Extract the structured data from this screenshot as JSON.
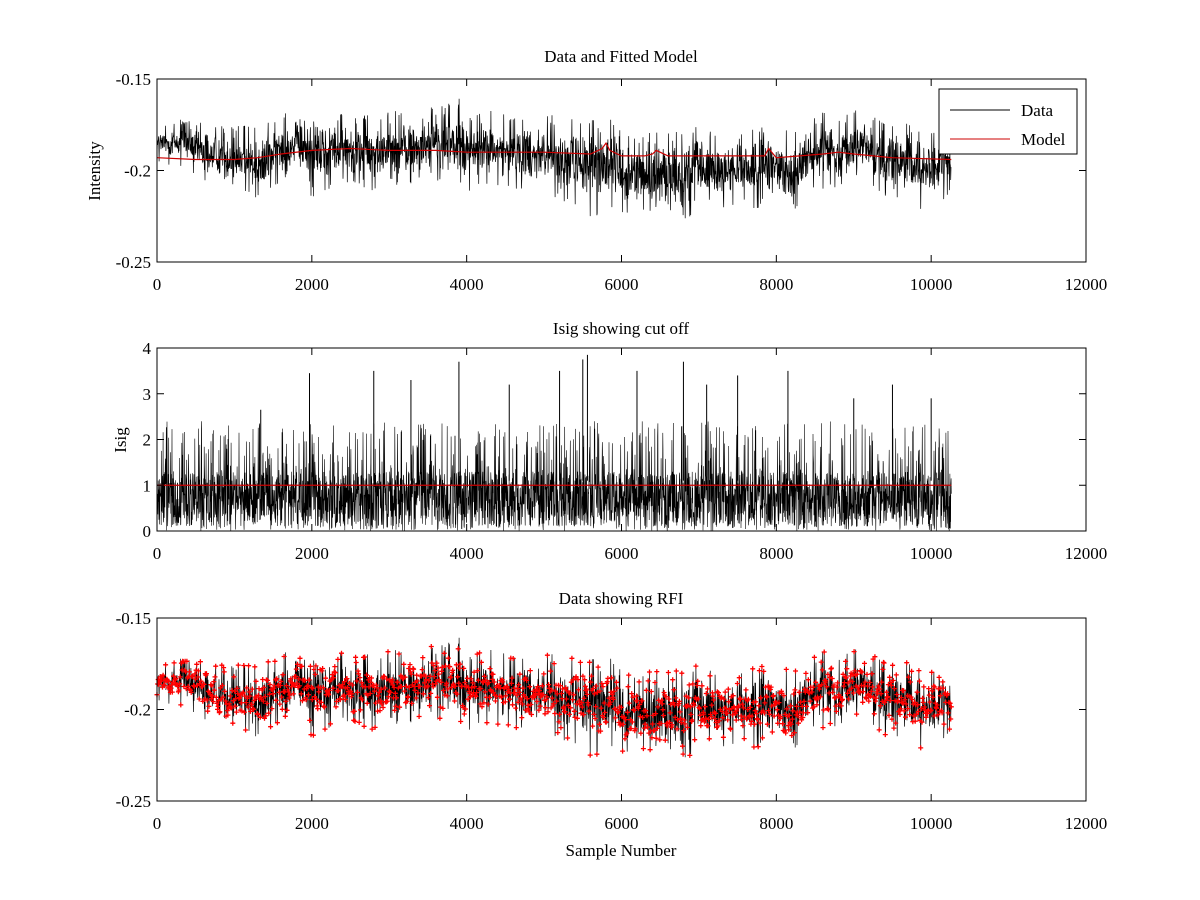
{
  "colors": {
    "data": "#000000",
    "model": "#cc0000",
    "rfi": "#ff0000",
    "axes": "#000000",
    "background": "#ffffff"
  },
  "chart_data": [
    {
      "type": "line",
      "title": "Data and Fitted Model",
      "xlabel": "",
      "ylabel": "Intensity",
      "xlim": [
        0,
        12000
      ],
      "ylim": [
        -0.25,
        -0.15
      ],
      "y_direction": "reversed",
      "xticks": [
        0,
        2000,
        4000,
        6000,
        8000,
        10000,
        12000
      ],
      "xtick_labels": [
        "0",
        "2000",
        "4000",
        "6000",
        "8000",
        "10000",
        "12000"
      ],
      "yticks": [
        -0.15,
        -0.2,
        -0.25
      ],
      "ytick_labels": [
        "-0.15",
        "-0.2",
        "-0.25"
      ],
      "legend": {
        "position": "top-right",
        "entries": [
          "Data",
          "Model"
        ]
      },
      "series": [
        {
          "name": "Data",
          "kind": "noisy-trace",
          "n_samples": 10260,
          "x_range": [
            0,
            10260
          ],
          "envelope": {
            "x": [
              0,
              300,
              600,
              900,
              1200,
              1350,
              1500,
              1800,
              2000,
              2400,
              2800,
              3200,
              3600,
              3900,
              4200,
              4600,
              5000,
              5400,
              5600,
              5800,
              6000,
              6200,
              6600,
              7000,
              7400,
              7800,
              8200,
              8600,
              9000,
              9400,
              9800,
              10260
            ],
            "upper": [
              -0.175,
              -0.172,
              -0.174,
              -0.176,
              -0.175,
              -0.174,
              -0.172,
              -0.166,
              -0.164,
              -0.168,
              -0.17,
              -0.166,
              -0.165,
              -0.16,
              -0.166,
              -0.17,
              -0.168,
              -0.172,
              -0.17,
              -0.165,
              -0.178,
              -0.18,
              -0.178,
              -0.175,
              -0.18,
              -0.176,
              -0.178,
              -0.168,
              -0.166,
              -0.172,
              -0.175,
              -0.18
            ],
            "lower": [
              -0.196,
              -0.198,
              -0.205,
              -0.21,
              -0.213,
              -0.22,
              -0.208,
              -0.205,
              -0.215,
              -0.207,
              -0.212,
              -0.21,
              -0.205,
              -0.212,
              -0.21,
              -0.21,
              -0.212,
              -0.22,
              -0.228,
              -0.222,
              -0.225,
              -0.222,
              -0.228,
              -0.225,
              -0.22,
              -0.222,
              -0.223,
              -0.21,
              -0.208,
              -0.215,
              -0.222,
              -0.215
            ]
          }
        },
        {
          "name": "Model",
          "kind": "line",
          "x": [
            0,
            500,
            1000,
            1300,
            1600,
            2000,
            2500,
            3000,
            3600,
            4000,
            4600,
            5000,
            5600,
            5750,
            5800,
            5850,
            6000,
            6300,
            6400,
            6450,
            6600,
            7000,
            7600,
            7850,
            7900,
            8000,
            8300,
            8600,
            8800,
            9000,
            9500,
            10260
          ],
          "y": [
            -0.193,
            -0.194,
            -0.194,
            -0.193,
            -0.191,
            -0.189,
            -0.188,
            -0.189,
            -0.189,
            -0.19,
            -0.19,
            -0.19,
            -0.191,
            -0.188,
            -0.185,
            -0.189,
            -0.192,
            -0.192,
            -0.191,
            -0.189,
            -0.192,
            -0.192,
            -0.192,
            -0.192,
            -0.188,
            -0.193,
            -0.192,
            -0.191,
            -0.19,
            -0.191,
            -0.193,
            -0.194
          ]
        }
      ]
    },
    {
      "type": "line",
      "title": "Isig showing cut off",
      "xlabel": "",
      "ylabel": "Isig",
      "xlim": [
        0,
        12000
      ],
      "ylim": [
        0,
        4
      ],
      "xticks": [
        0,
        2000,
        4000,
        6000,
        8000,
        10000,
        12000
      ],
      "xtick_labels": [
        "0",
        "2000",
        "4000",
        "6000",
        "8000",
        "10000",
        "12000"
      ],
      "yticks": [
        0,
        1,
        2,
        3,
        4
      ],
      "ytick_labels": [
        "0",
        "1",
        "2",
        "3",
        "4"
      ],
      "series": [
        {
          "name": "Isig",
          "kind": "noisy-trace",
          "n_samples": 10260,
          "x_range": [
            0,
            10260
          ],
          "dense_band": [
            0.1,
            1.3
          ],
          "peaks": {
            "x": [
              1340,
              1970,
              2800,
              3280,
              3900,
              4550,
              5200,
              5500,
              5560,
              6200,
              6800,
              7100,
              7500,
              8150,
              9000,
              9500,
              10000
            ],
            "y": [
              2.65,
              3.45,
              3.5,
              3.3,
              3.7,
              3.2,
              3.5,
              3.75,
              3.85,
              3.5,
              3.7,
              3.2,
              3.4,
              3.5,
              2.9,
              3.2,
              2.9
            ]
          }
        },
        {
          "name": "Cut off",
          "kind": "line",
          "x": [
            0,
            10260
          ],
          "y": [
            1,
            1
          ]
        }
      ]
    },
    {
      "type": "line",
      "title": "Data showing RFI",
      "xlabel": "Sample Number",
      "ylabel": "",
      "xlim": [
        0,
        12000
      ],
      "ylim": [
        -0.25,
        -0.15
      ],
      "y_direction": "reversed",
      "xticks": [
        0,
        2000,
        4000,
        6000,
        8000,
        10000,
        12000
      ],
      "xtick_labels": [
        "0",
        "2000",
        "4000",
        "6000",
        "8000",
        "10000",
        "12000"
      ],
      "yticks": [
        -0.15,
        -0.2,
        -0.25
      ],
      "ytick_labels": [
        "-0.15",
        "-0.2",
        "-0.25"
      ],
      "series": [
        {
          "name": "Data",
          "kind": "noisy-trace",
          "same_as": "panel 1 Data"
        },
        {
          "name": "RFI",
          "kind": "markers",
          "marker": "+",
          "note": "flagged samples overlaid on the data"
        }
      ]
    }
  ]
}
